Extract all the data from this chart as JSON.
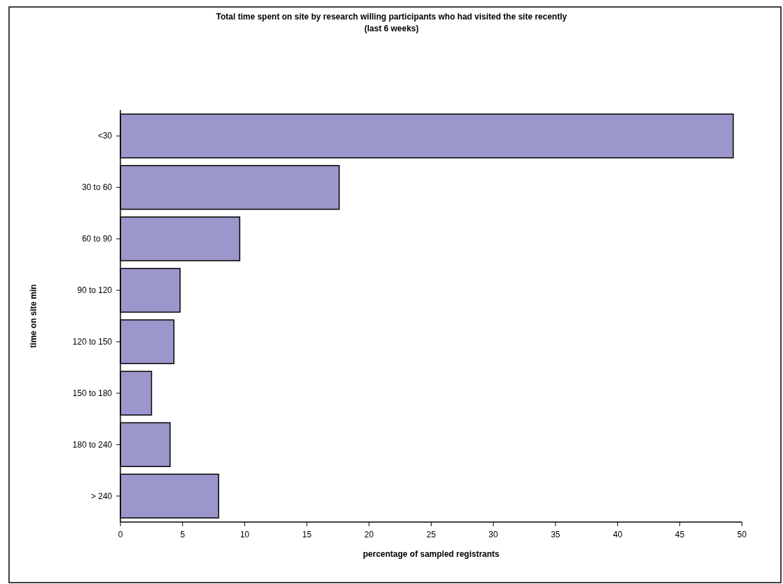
{
  "chart_data": {
    "type": "bar",
    "orientation": "horizontal",
    "title": "Total time spent on site by research willing participants who had visited the site recently (last 6 weeks)",
    "xlabel": "percentage of sampled registrants",
    "ylabel": "time on site min",
    "categories": [
      "<30",
      "30 to 60",
      "60 to 90",
      "90 to 120",
      "120 to 150",
      "150 to 180",
      "180 to 240",
      "> 240"
    ],
    "values": [
      49.3,
      17.6,
      9.6,
      4.8,
      4.3,
      2.5,
      4.0,
      7.9
    ],
    "color": "#9b97cc",
    "xlim": [
      0,
      50
    ],
    "xticks": [
      0,
      5,
      10,
      15,
      20,
      25,
      30,
      35,
      40,
      45,
      50
    ],
    "grid": false
  }
}
